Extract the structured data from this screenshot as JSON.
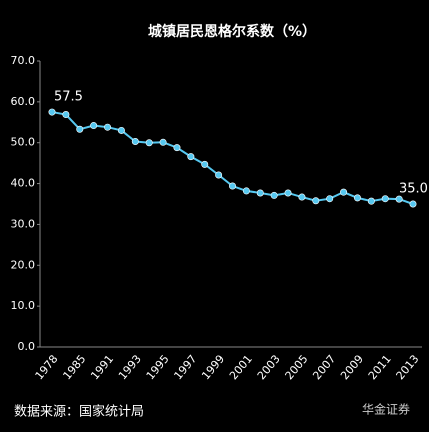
{
  "chart_data": {
    "type": "line",
    "title": "城镇居民恩格尔系数（%）",
    "categories": [
      "1978",
      null,
      "1985",
      null,
      "1991",
      null,
      "1993",
      null,
      "1995",
      null,
      "1997",
      null,
      "1999",
      null,
      "2001",
      null,
      "2003",
      null,
      "2005",
      null,
      "2007",
      null,
      "2009",
      null,
      "2011",
      null,
      "2013"
    ],
    "series": [
      {
        "name": "城镇居民恩格尔系数",
        "color": "#56c8f0",
        "values": [
          57.5,
          56.9,
          53.3,
          54.2,
          53.8,
          53.0,
          50.3,
          50.0,
          50.1,
          48.8,
          46.6,
          44.7,
          42.1,
          39.4,
          38.2,
          37.7,
          37.1,
          37.7,
          36.7,
          35.8,
          36.3,
          37.9,
          36.5,
          35.7,
          36.3,
          36.2,
          35.0
        ],
        "value_labels": [
          "57.5",
          null,
          null,
          null,
          null,
          null,
          null,
          null,
          null,
          null,
          null,
          null,
          null,
          null,
          null,
          null,
          null,
          null,
          null,
          null,
          null,
          null,
          null,
          null,
          null,
          null,
          "35.0"
        ]
      }
    ],
    "ylim": [
      0,
      70
    ],
    "yticks": [
      {
        "value": 0,
        "label": "0.0"
      },
      {
        "value": 10,
        "label": "10.0"
      },
      {
        "value": 20,
        "label": "20.0"
      },
      {
        "value": 30,
        "label": "30.0"
      },
      {
        "value": 40,
        "label": "40.0"
      },
      {
        "value": 50,
        "label": "50.0"
      },
      {
        "value": 60,
        "label": "60.0"
      },
      {
        "value": 70,
        "label": "70.0"
      }
    ],
    "grid": false,
    "source": "数据来源：国家统计局",
    "watermark": "华金证券"
  }
}
